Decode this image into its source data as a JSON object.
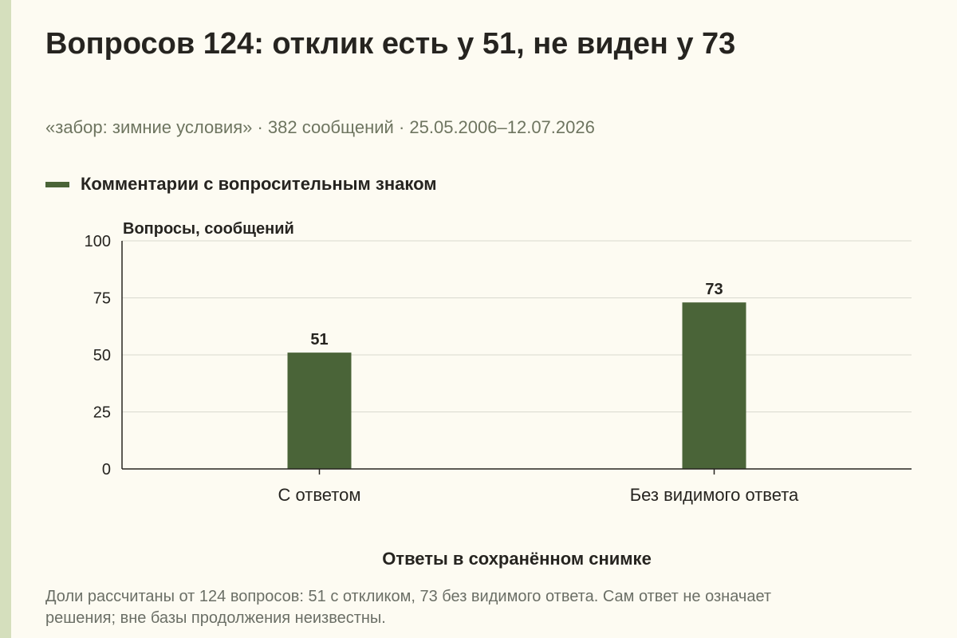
{
  "header": {
    "title": "Вопросов 124: отклик есть у 51, не виден у 73",
    "subtitle": "«забор: зимние условия» · 382 сообщений · 25.05.2006–12.07.2026"
  },
  "legend": {
    "label": "Комментарии с вопросительным знаком"
  },
  "chart_data": {
    "type": "bar",
    "categories": [
      "С ответом",
      "Без видимого ответа"
    ],
    "series": [
      {
        "name": "Комментарии с вопросительным знаком",
        "values": [
          51,
          73
        ]
      }
    ],
    "xlabel": "Ответы в сохранённом снимке",
    "ylabel": "Вопросы, сообщений",
    "ylim": [
      0,
      100
    ],
    "yticks": [
      0,
      25,
      50,
      75,
      100
    ],
    "data_labels": true,
    "grid": true,
    "legend_position": "top-left"
  },
  "note": "Доли рассчитаны от 124 вопросов: 51 с откликом, 73 без видимого ответа. Сам ответ не означает решения; вне базы продолжения неизвестны.",
  "colors": {
    "bar": "#4a6438",
    "background": "#fdfbf2",
    "stripe": "#d5dfbd"
  }
}
